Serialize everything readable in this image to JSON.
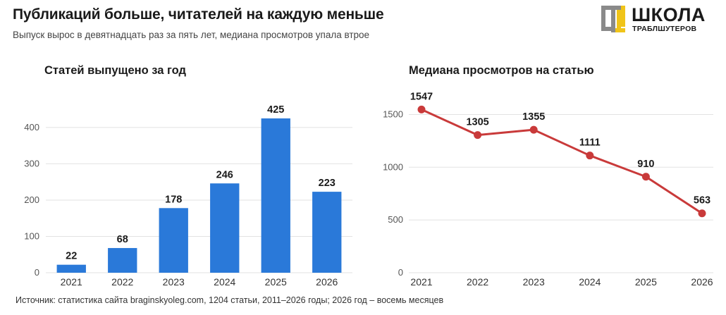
{
  "header": {
    "title": "Публикаций больше, читателей на каждую меньше",
    "subtitle": "Выпуск вырос в девятнадцать раз за пять лет, медиана просмотров упала втрое"
  },
  "logo": {
    "word": "ШКОЛА",
    "sub": "ТРАБЛШУТЕРОВ",
    "colors": {
      "gray": "#8a8a8a",
      "yellow": "#f0c419"
    }
  },
  "chart_data": [
    {
      "type": "bar",
      "title": "Статей выпущено за год",
      "categories": [
        "2021",
        "2022",
        "2023",
        "2024",
        "2025",
        "2026"
      ],
      "values": [
        22,
        68,
        178,
        246,
        425,
        223
      ],
      "ylim": [
        0,
        460
      ],
      "yticks": [
        0,
        100,
        200,
        300,
        400
      ],
      "color": "#2a79d9",
      "grid": true
    },
    {
      "type": "line",
      "title": "Медиана просмотров на статью",
      "categories": [
        "2021",
        "2022",
        "2023",
        "2024",
        "2025",
        "2026"
      ],
      "values": [
        1547,
        1305,
        1355,
        1111,
        910,
        563
      ],
      "ylim": [
        0,
        1650
      ],
      "yticks": [
        0,
        500,
        1000,
        1500
      ],
      "color": "#c93a3a",
      "grid": true
    }
  ],
  "footer": {
    "source": "Источник: статистика сайта braginskyoleg.com, 1204 статьи, 2011–2026 годы; 2026 год – восемь месяцев"
  }
}
